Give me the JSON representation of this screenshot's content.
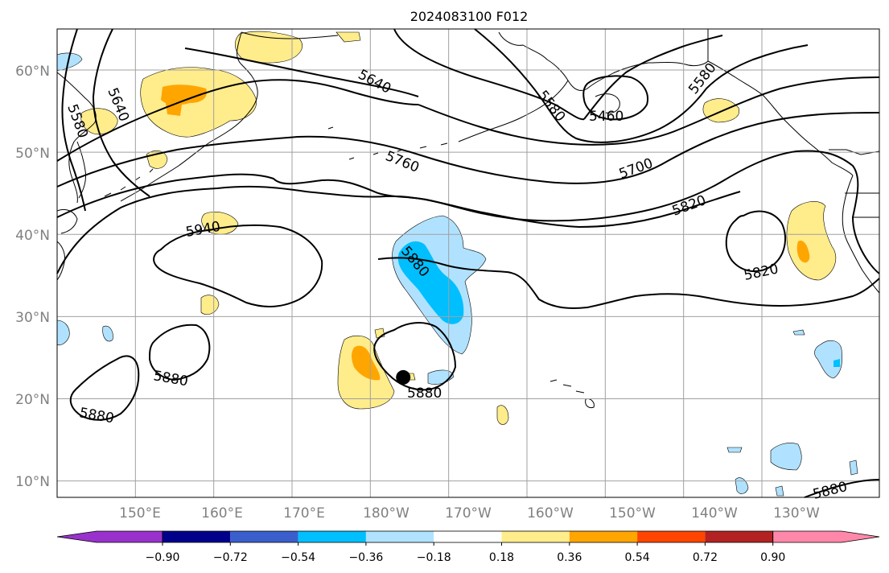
{
  "title": "2024083100 F012",
  "latitude_labels": [
    "60°N",
    "50°N",
    "40°N",
    "30°N",
    "20°N",
    "10°N"
  ],
  "longitude_labels": [
    "150°E",
    "160°E",
    "170°E",
    "180°W",
    "170°W",
    "160°W",
    "150°W",
    "140°W",
    "130°W"
  ],
  "contour_labels": [
    "5580",
    "5640",
    "5640",
    "5580",
    "5460",
    "5580",
    "5760",
    "5700",
    "5820",
    "5940",
    "5880",
    "5820",
    "5880",
    "5880",
    "5880",
    "5880"
  ],
  "colorbar": {
    "ticks": [
      "−0.90",
      "−0.72",
      "−0.54",
      "−0.36",
      "−0.18",
      "0.18",
      "0.36",
      "0.54",
      "0.72",
      "0.90"
    ],
    "colors": [
      "#9932cc",
      "#00008b",
      "#3a5fcd",
      "#00bfff",
      "#b0e2ff",
      "#ffffff",
      "#ffec8b",
      "#ffa500",
      "#ff4500",
      "#b22222",
      "#ff88aa"
    ]
  },
  "marker": {
    "name": "storm-position",
    "lat": 22.6,
    "lon": -175.8
  }
}
